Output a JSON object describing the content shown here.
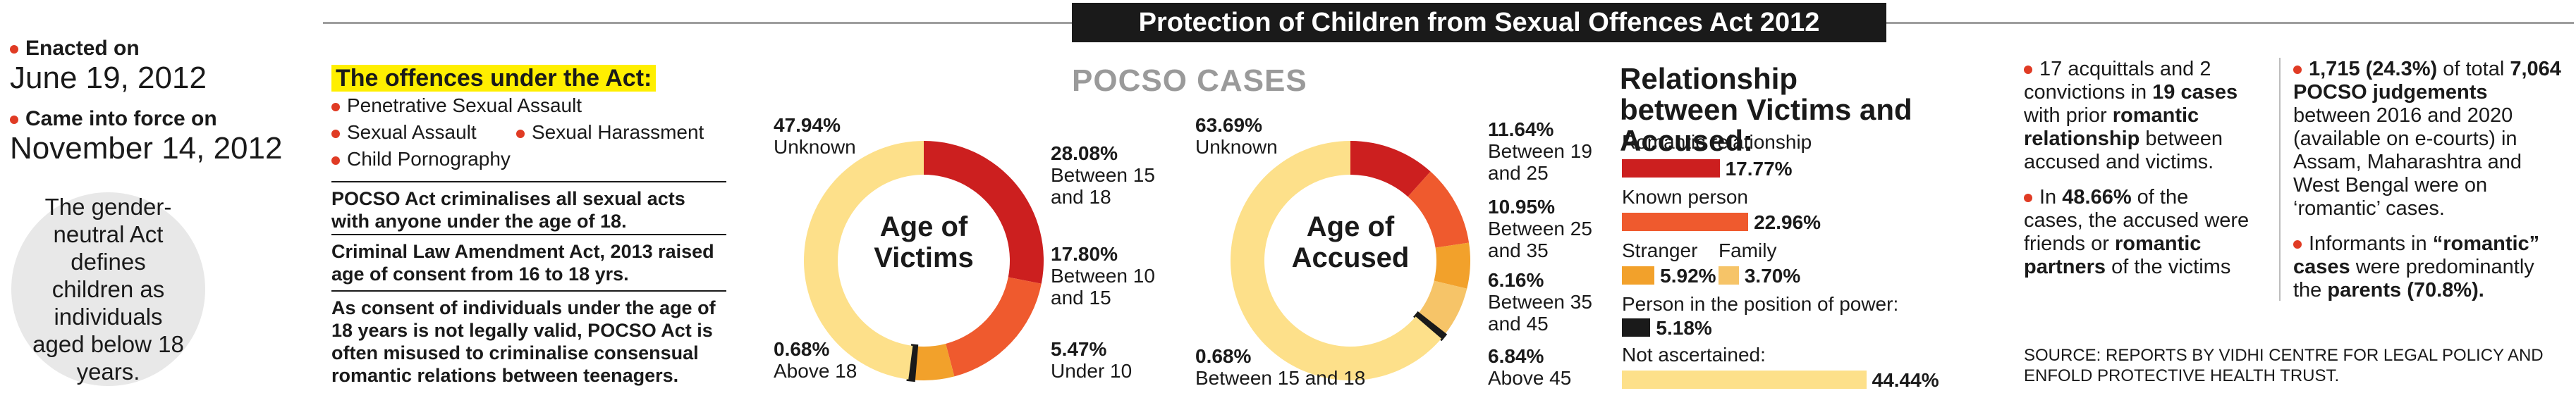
{
  "title": "Protection of Children from Sexual Offences Act 2012",
  "dates": {
    "enacted_label": "Enacted on",
    "enacted_value": "June 19, 2012",
    "force_label": "Came into force on",
    "force_value": "November 14, 2012"
  },
  "circle_note": "The gender-neutral Act defines children as individuals aged below 18 years.",
  "offences": {
    "heading": "The offences under the Act:",
    "items": [
      "Penetrative Sexual Assault",
      "Sexual Assault",
      "Sexual Harassment",
      "Child Pornography"
    ],
    "para1": "POCSO Act criminalises all sexual acts with anyone under the age of 18.",
    "para2": "Criminal Law Amendment Act, 2013 raised age of consent from 16 to 18 yrs.",
    "para3": "As consent of individuals under the age of 18 years is not legally valid, POCSO Act is often misused to criminalise consensual romantic relations between teenagers."
  },
  "pocso_cases_title": "POCSO CASES",
  "chart_data": [
    {
      "type": "pie",
      "title": "Age of Victims",
      "slices": [
        {
          "label": "Between 15 and 18",
          "value": 28.08,
          "pct": "28.08%",
          "color": "#cc1f1f"
        },
        {
          "label": "Between 10 and 15",
          "value": 17.8,
          "pct": "17.80%",
          "color": "#ef5a2e"
        },
        {
          "label": "Under 10",
          "value": 5.47,
          "pct": "5.47%",
          "color": "#f2a12b"
        },
        {
          "label": "Above 18",
          "value": 0.68,
          "pct": "0.68%",
          "color": "#1a1a1a"
        },
        {
          "label": "Unknown",
          "value": 47.94,
          "pct": "47.94%",
          "color": "#fde08a"
        }
      ]
    },
    {
      "type": "pie",
      "title": "Age of Accused",
      "slices": [
        {
          "label": "Between 19 and 25",
          "value": 11.64,
          "pct": "11.64%",
          "color": "#cc1f1f"
        },
        {
          "label": "Between 25 and 35",
          "value": 10.95,
          "pct": "10.95%",
          "color": "#ef5a2e"
        },
        {
          "label": "Between 35 and 45",
          "value": 6.16,
          "pct": "6.16%",
          "color": "#f2a12b"
        },
        {
          "label": "Above 45",
          "value": 6.84,
          "pct": "6.84%",
          "color": "#f6c468"
        },
        {
          "label": "Between 15 and 18",
          "value": 0.68,
          "pct": "0.68%",
          "color": "#1a1a1a"
        },
        {
          "label": "Unknown",
          "value": 63.69,
          "pct": "63.69%",
          "color": "#fde08a"
        }
      ]
    },
    {
      "type": "bar",
      "title": "Relationship between Victims and Accused:",
      "bars": [
        {
          "label": "Romantic relationship",
          "value": 17.77,
          "pct": "17.77%",
          "color": "#cc1f1f"
        },
        {
          "label": "Known person",
          "value": 22.96,
          "pct": "22.96%",
          "color": "#ef5a2e"
        },
        {
          "label": "Stranger",
          "value": 5.92,
          "pct": "5.92%",
          "color": "#f2a12b"
        },
        {
          "label": "Family",
          "value": 3.7,
          "pct": "3.70%",
          "color": "#f6c468"
        },
        {
          "label": "Person in the position of power:",
          "value": 5.18,
          "pct": "5.18%",
          "color": "#1a1a1a"
        },
        {
          "label": "Not ascertained:",
          "value": 44.44,
          "pct": "44.44%",
          "color": "#fde08a"
        }
      ]
    }
  ],
  "facts_col1": {
    "b1_a": "17 acquittals and 2 convictions in ",
    "b1_b": "19 cases",
    "b1_c": " with prior ",
    "b1_d": "romantic relationship",
    "b1_e": " between accused and victims.",
    "b2_a": "In ",
    "b2_b": "48.66%",
    "b2_c": " of the cases, the accused were friends or ",
    "b2_d": "romantic partners",
    "b2_e": " of the victims"
  },
  "facts_col2": {
    "b1_a": "1,715 (24.3%)",
    "b1_b": " of total ",
    "b1_c": "7,064 POCSO judgements",
    "b1_d": " between 2016 and 2020 (available on e-courts) in Assam, Maharashtra and West Bengal were on ‘romantic’ cases.",
    "b2_a": "Informants in ",
    "b2_b": "“romantic” cases",
    "b2_c": " were predominantly the ",
    "b2_d": "parents (70.8%)."
  },
  "source": "SOURCE: REPORTS BY VIDHI CENTRE FOR LEGAL POLICY AND ENFOLD PROTECTIVE HEALTH TRUST."
}
